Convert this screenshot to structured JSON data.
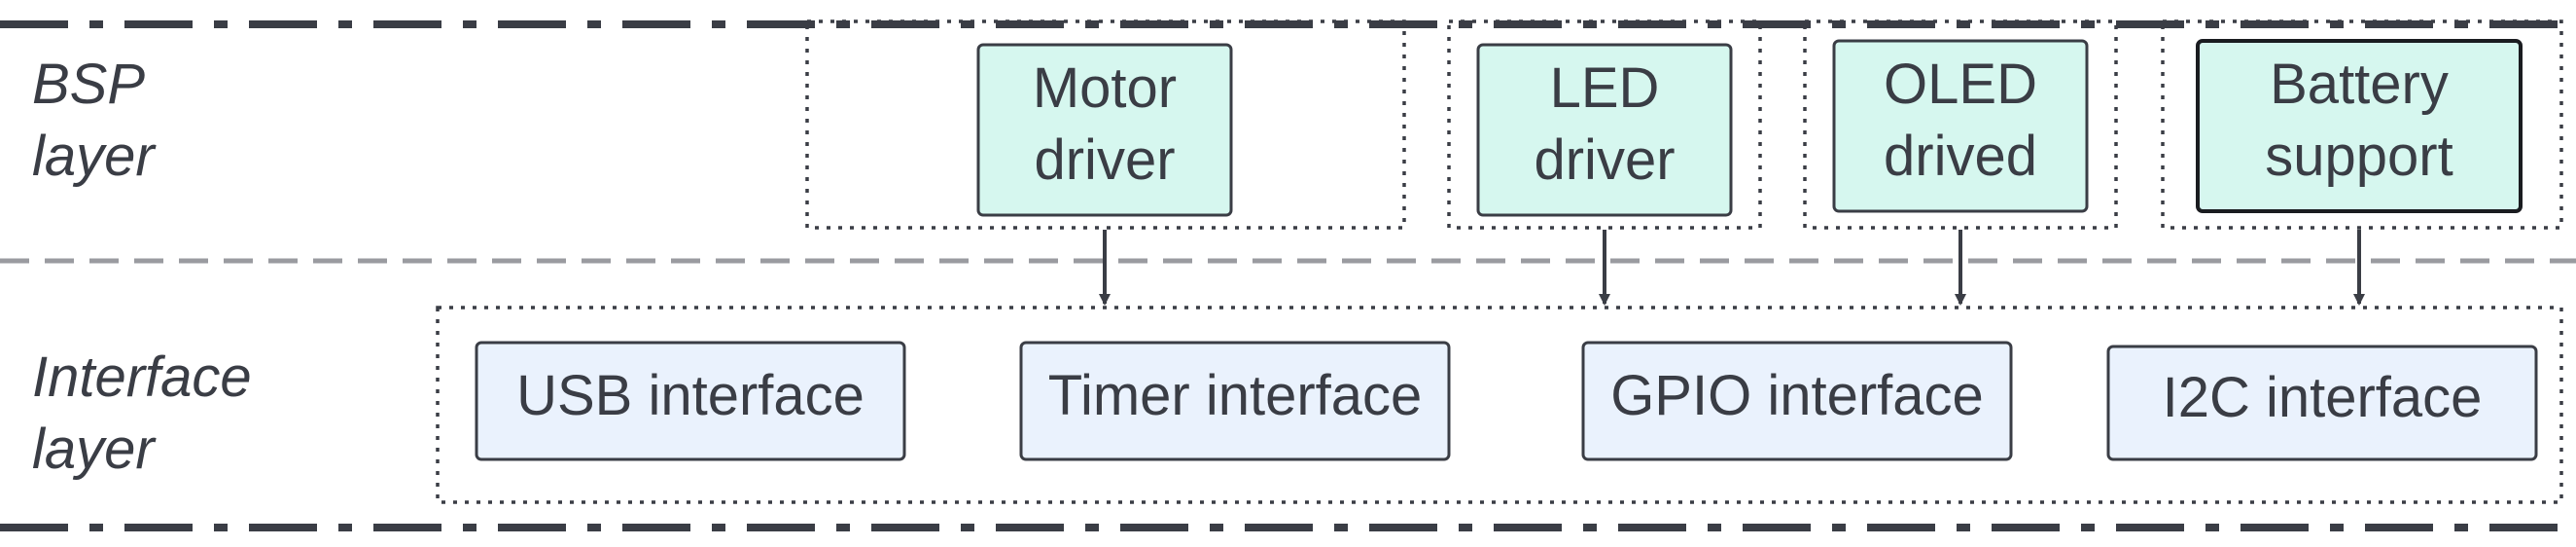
{
  "layers": {
    "bsp": {
      "label_line1": "BSP",
      "label_line2": "layer"
    },
    "interface": {
      "label_line1": "Interface",
      "label_line2": "layer"
    }
  },
  "drivers": [
    {
      "line1": "Motor",
      "line2": "driver"
    },
    {
      "line1": "LED",
      "line2": "driver"
    },
    {
      "line1": "OLED",
      "line2": "drived"
    },
    {
      "line1": "Battery",
      "line2": "support"
    }
  ],
  "interfaces": [
    {
      "label": "USB interface"
    },
    {
      "label": "Timer interface"
    },
    {
      "label": "GPIO interface"
    },
    {
      "label": "I2C interface"
    }
  ],
  "colors": {
    "text": "#3a3d45",
    "border": "#3a3d45",
    "driver_fill": "#d6f7ef",
    "interface_fill": "#eaf2fd",
    "border_line": "#3a3d45",
    "separator": "#9a9ba0"
  }
}
